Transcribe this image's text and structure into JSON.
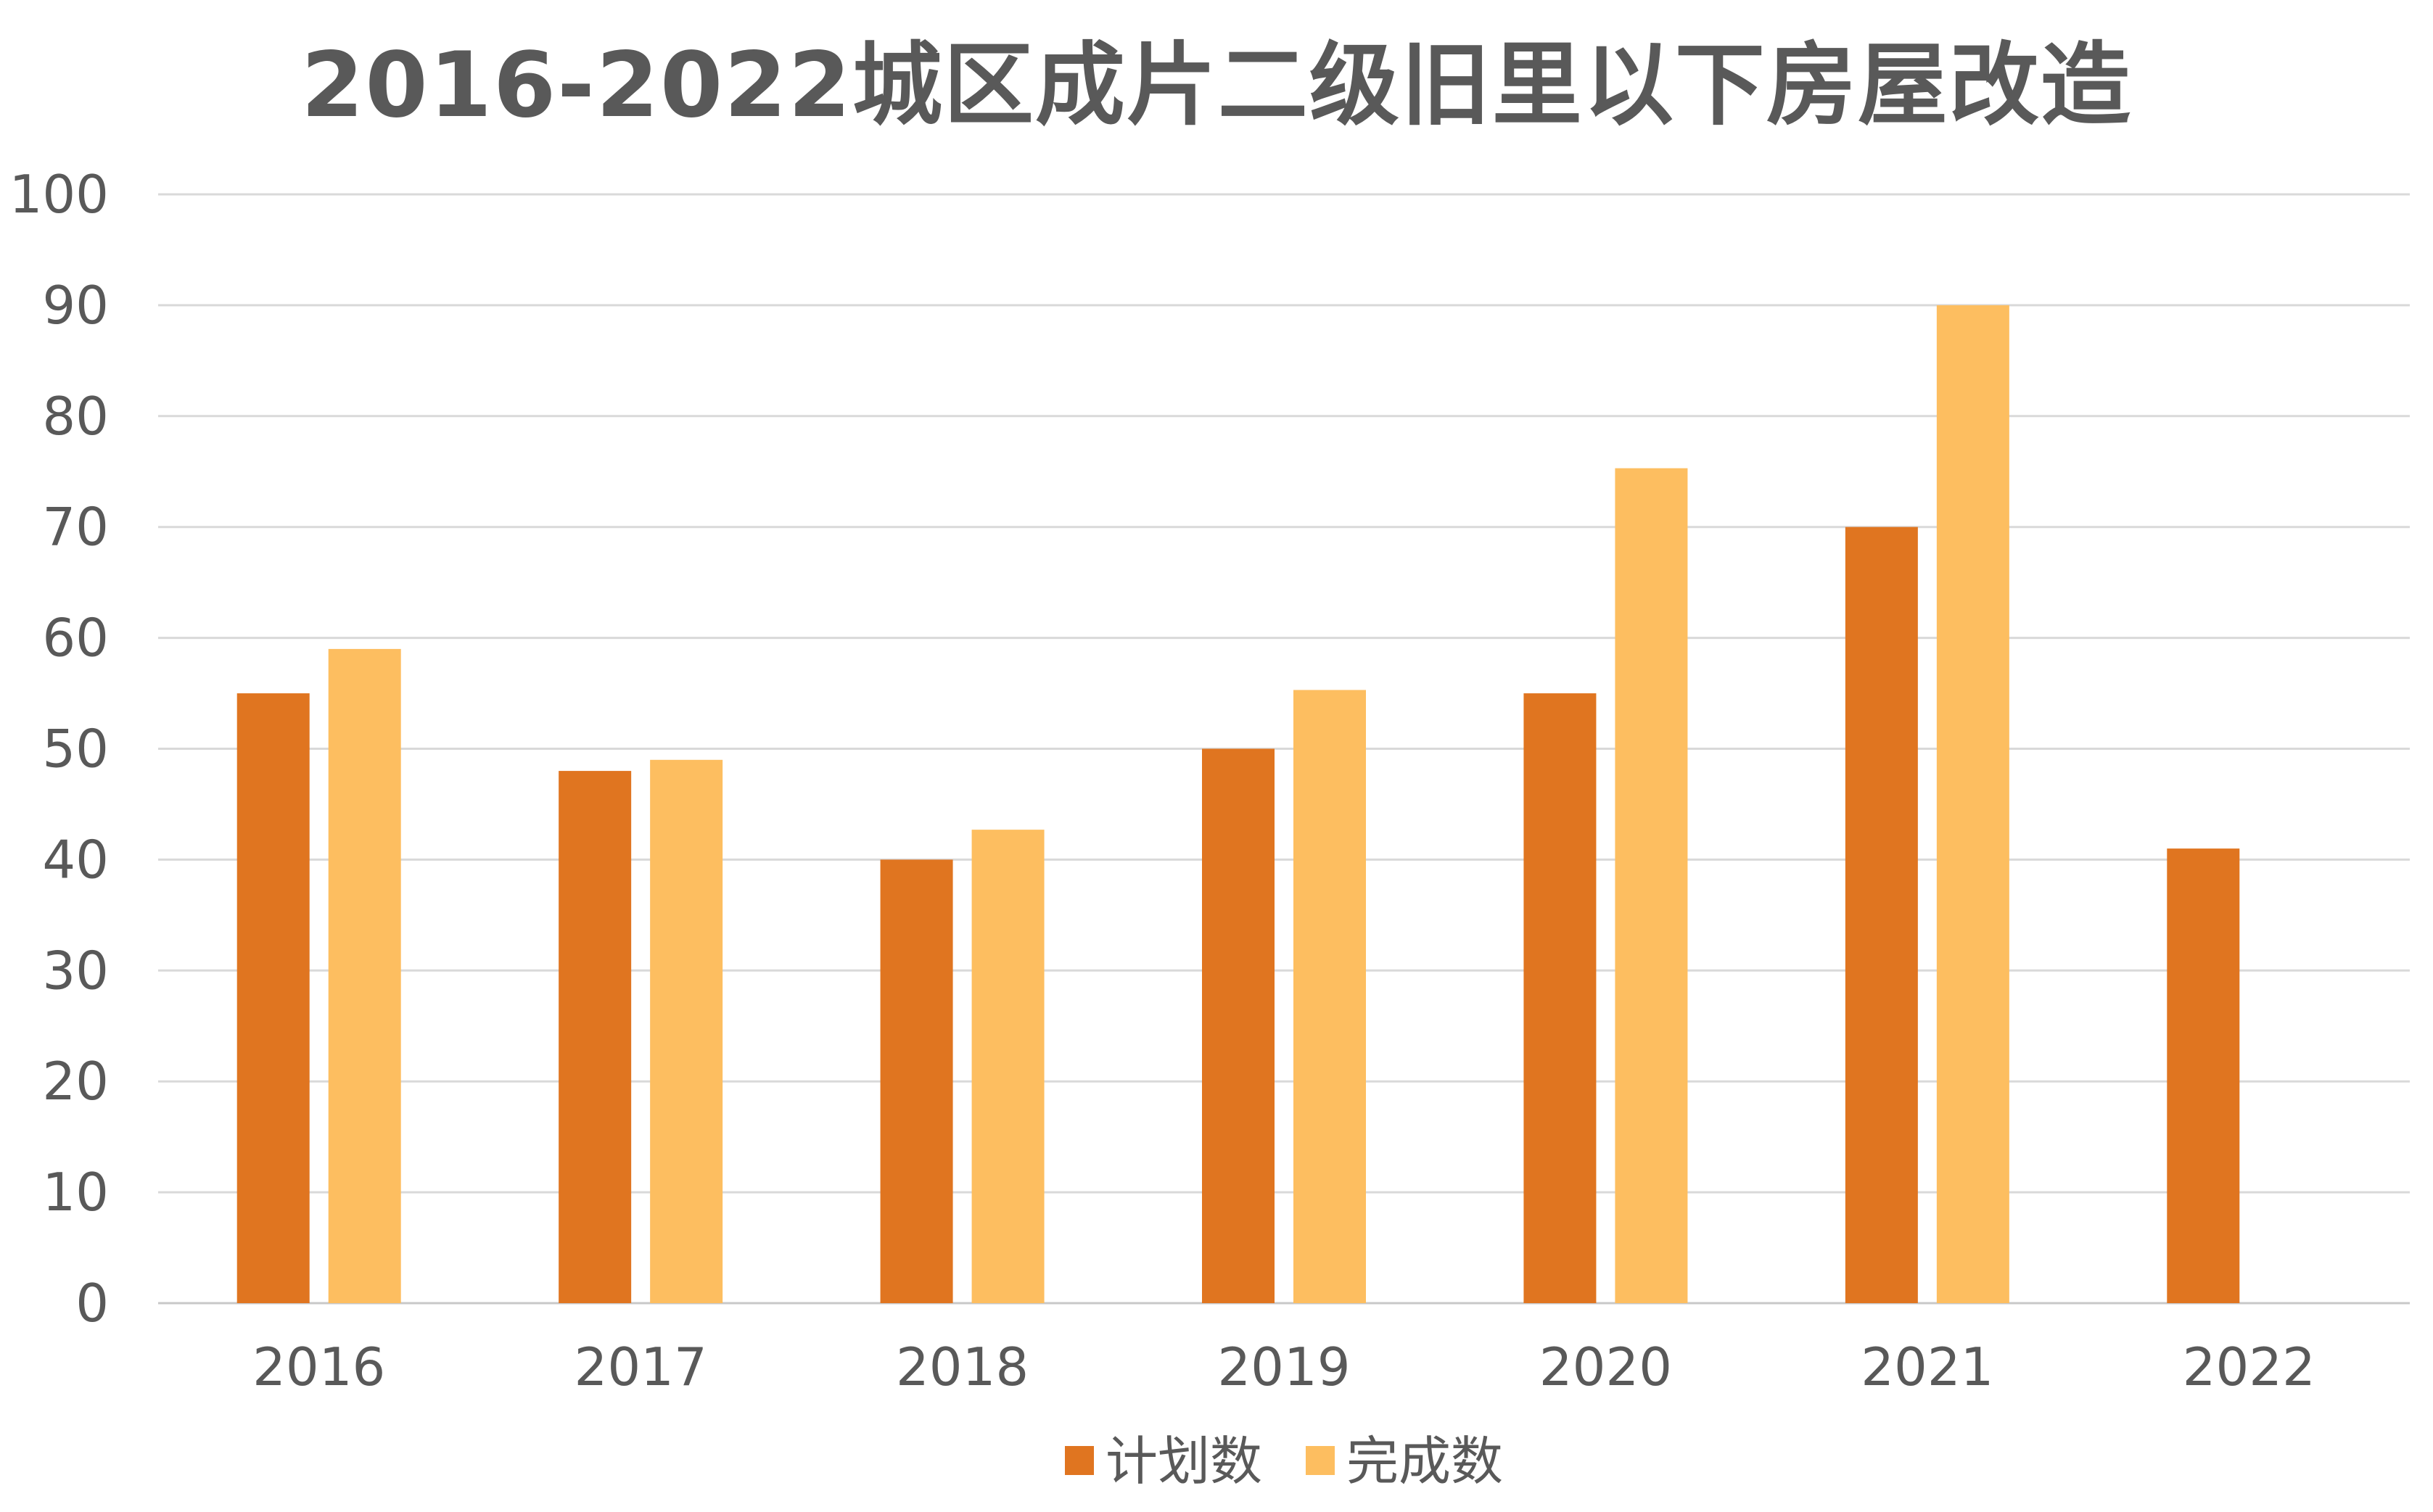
{
  "chart_data": {
    "type": "bar",
    "title": "2016-2022城区成片二级旧里以下房屋改造",
    "xlabel": "",
    "ylabel": "",
    "categories": [
      "2016",
      "2017",
      "2018",
      "2019",
      "2020",
      "2021",
      "2022"
    ],
    "series": [
      {
        "name": "计划数",
        "color": "#E07520",
        "values": [
          55,
          48,
          40,
          50,
          55,
          70,
          41
        ]
      },
      {
        "name": "完成数",
        "color": "#FDBE60",
        "values": [
          59,
          49,
          42.7,
          55.3,
          75.3,
          90,
          null
        ]
      }
    ],
    "ylim": [
      0,
      100
    ],
    "yticks": [
      "0",
      "10",
      "20",
      "30",
      "40",
      "50",
      "60",
      "70",
      "80",
      "90",
      "100"
    ],
    "grid": true,
    "legend": "bottom"
  }
}
